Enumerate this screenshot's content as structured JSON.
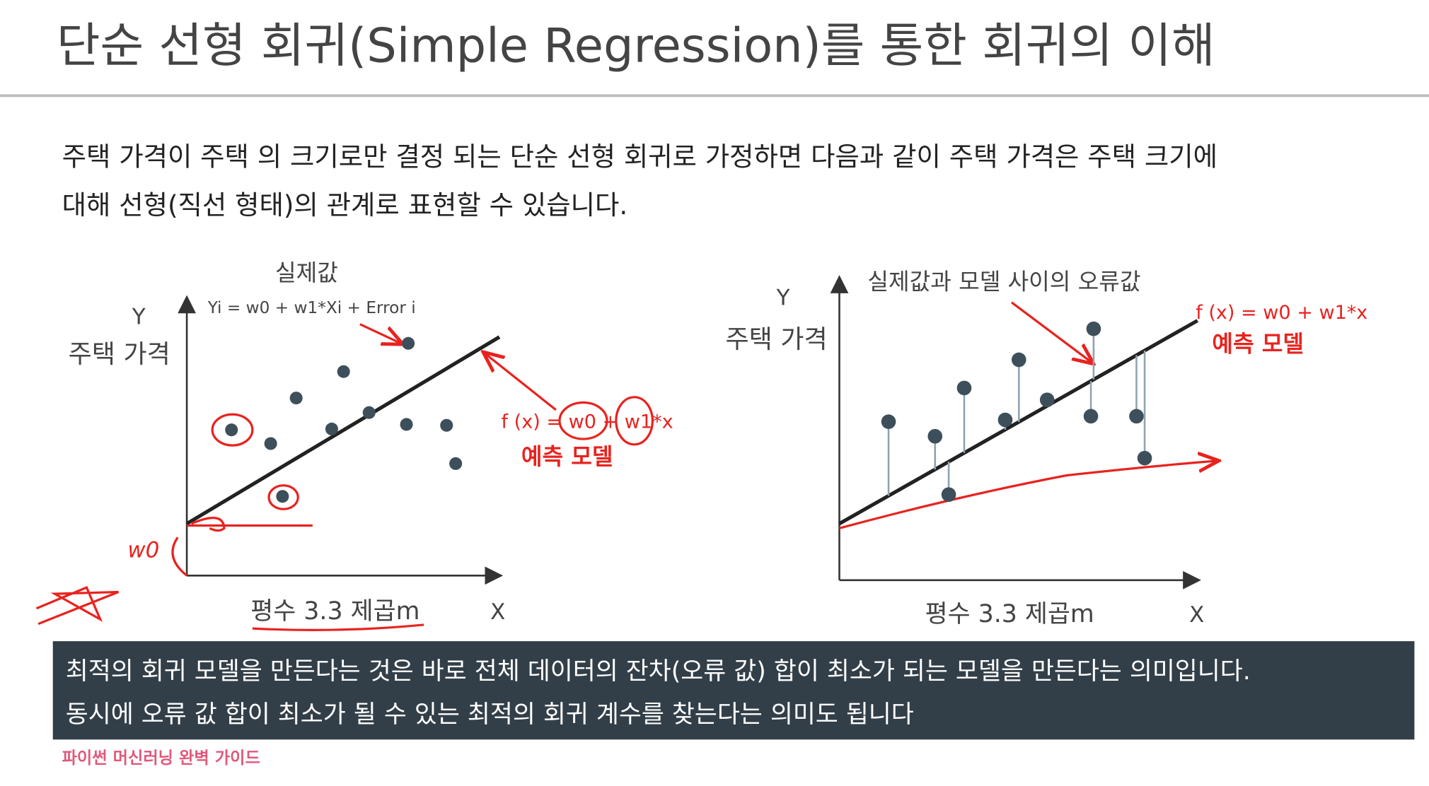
{
  "header": {
    "title": "단순 선형 회귀(Simple Regression)를 통한 회귀의 이해"
  },
  "intro": {
    "lines": [
      "주택 가격이 주택 의 크기로만 결정 되는 단순 선형 회귀로 가정하면 다음과 같이 주택 가격은 주택 크기에",
      "대해 선형(직선 형태)의 관계로 표현할 수 있습니다."
    ]
  },
  "left_diagram": {
    "y_axis": "Y",
    "y_label": "주택 가격",
    "actual_label": "실제값",
    "formula": "Yi = w0 + w1*Xi + Error i",
    "model_formula": "f (x) = w0 + w1*x",
    "model_label": "예측 모델",
    "intercept_note": "w0",
    "x_label": "평수 3.3 제곱m",
    "x_axis": "X"
  },
  "right_diagram": {
    "y_axis": "Y",
    "y_label": "주택 가격",
    "error_label": "실제값과 모델 사이의 오류값",
    "model_formula": "f (x) = w0 + w1*x",
    "model_label": "예측 모델",
    "x_label": "평수 3.3 제곱m",
    "x_axis": "X"
  },
  "summary": {
    "lines": [
      "최적의 회귀 모델을 만든다는 것은 바로 전체 데이터의 잔차(오류 값) 합이 최소가 되는 모델을 만든다는 의미입니다.",
      "동시에 오류 값 합이 최소가 될 수 있는 최적의 회귀 계수를 찾는다는 의미도 됩니다"
    ]
  },
  "footer": {
    "text": "파이썬 머신러닝 완벽 가이드"
  }
}
